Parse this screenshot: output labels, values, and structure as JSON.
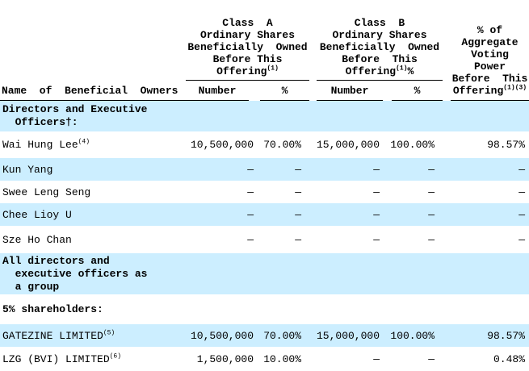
{
  "colors": {
    "row_highlight": "#cceeff",
    "text": "#000000",
    "rule": "#000000"
  },
  "table": {
    "header": {
      "name_col": "Name  of  Beneficial  Owners",
      "class_a": {
        "lines": [
          "Class  A",
          "Ordinary Shares",
          "Beneficially  Owned",
          "Before This"
        ],
        "last": "Offering",
        "last_sup": "(1)",
        "last_after": "",
        "sub_number": "Number",
        "sub_pct": "%"
      },
      "class_b": {
        "lines": [
          "Class  B",
          "Ordinary Shares",
          "Beneficially  Owned",
          "Before  This"
        ],
        "last": "Offering",
        "last_sup": "(1)",
        "last_after": "%",
        "sub_number": "Number",
        "sub_pct": "%"
      },
      "voting": {
        "lines": [
          "% of",
          "Aggregate",
          "Voting",
          "Power",
          "Before  This"
        ],
        "last": "Offering",
        "last_sup": "(1)(3)"
      }
    },
    "rows": [
      {
        "line1": "Directors and Executive",
        "line2": "Officers†:"
      },
      {
        "line1": "Wai Hung Lee",
        "sup": "(4)",
        "a_num": "10,500,000",
        "a_pct": "70.00%",
        "b_num": "15,000,000",
        "b_pct": "100.00%",
        "vote": "98.57%"
      },
      {
        "line1": "Kun Yang",
        "a_num": "—",
        "a_pct": "—",
        "b_num": "—",
        "b_pct": "—",
        "vote": "—"
      },
      {
        "line1": "Swee Leng Seng",
        "a_num": "—",
        "a_pct": "—",
        "b_num": "—",
        "b_pct": "—",
        "vote": "—"
      },
      {
        "line1": "Chee Lioy U",
        "a_num": "—",
        "a_pct": "—",
        "b_num": "—",
        "b_pct": "—",
        "vote": "—"
      },
      {
        "line1": "Sze Ho Chan",
        "a_num": "—",
        "a_pct": "—",
        "b_num": "—",
        "b_pct": "—",
        "vote": "—"
      },
      {
        "line1": "All directors and",
        "line2": "executive officers as",
        "line3": "a group"
      },
      {
        "line1": "5% shareholders:"
      },
      {
        "line1": "GATEZINE LIMITED",
        "sup": "(5)",
        "a_num": "10,500,000",
        "a_pct": "70.00%",
        "b_num": "15,000,000",
        "b_pct": "100.00%",
        "vote": "98.57%"
      },
      {
        "line1": "LZG (BVI) LIMITED",
        "sup": "(6)",
        "a_num": "1,500,000",
        "a_pct": "10.00%",
        "b_num": "—",
        "b_pct": "—",
        "vote": "0.48%"
      }
    ]
  }
}
